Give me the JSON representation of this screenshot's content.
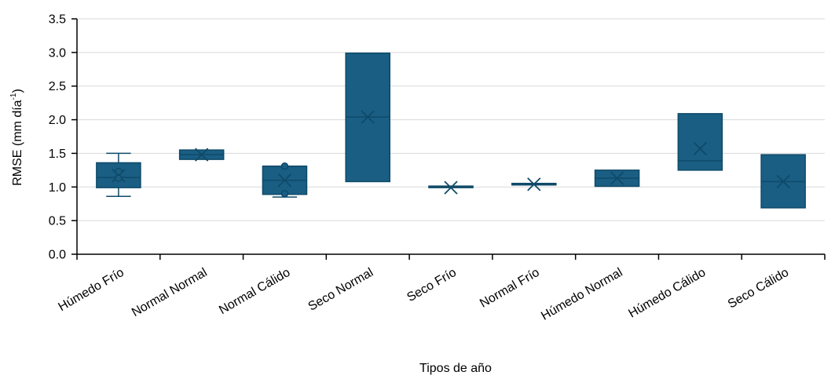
{
  "chart_data": {
    "type": "box",
    "xlabel": "Tipos de año",
    "ylabel": "RMSE (mm día",
    "ylabel_sup": "-1",
    "ylabel_close": ")",
    "ylim": [
      0,
      3.5
    ],
    "yticks": [
      "0.0",
      "0.5",
      "1.0",
      "1.5",
      "2.0",
      "2.5",
      "3.0",
      "3.5"
    ],
    "grid": true,
    "box_color": "#1a5e84",
    "box_edge_color": "#0f4a68",
    "categories": [
      "Húmedo Frío",
      "Normal Normal",
      "Normal Cálido",
      "Seco Normal",
      "Seco Frío",
      "Normal Frío",
      "Húmedo Normal",
      "Húmedo Cálido",
      "Seco Cálido"
    ],
    "boxes": [
      {
        "min": 0.86,
        "q1": 0.99,
        "median": 1.14,
        "q3": 1.36,
        "max": 1.5,
        "mean": 1.17,
        "points": [
          1.23,
          1.13
        ]
      },
      {
        "min": 1.41,
        "q1": 1.41,
        "median": 1.48,
        "q3": 1.55,
        "max": 1.55,
        "mean": 1.48,
        "points": []
      },
      {
        "min": 0.85,
        "q1": 0.89,
        "median": 1.1,
        "q3": 1.31,
        "max": 1.31,
        "mean": 1.1,
        "points": [
          1.31,
          0.9
        ]
      },
      {
        "min": 1.08,
        "q1": 1.08,
        "median": 2.04,
        "q3": 2.99,
        "max": 2.99,
        "mean": 2.04,
        "points": []
      },
      {
        "min": 0.99,
        "q1": 0.99,
        "median": 1.0,
        "q3": 1.0,
        "max": 1.0,
        "mean": 0.99,
        "points": []
      },
      {
        "min": 1.03,
        "q1": 1.03,
        "median": 1.04,
        "q3": 1.04,
        "max": 1.04,
        "mean": 1.04,
        "points": []
      },
      {
        "min": 1.01,
        "q1": 1.01,
        "median": 1.13,
        "q3": 1.25,
        "max": 1.25,
        "mean": 1.13,
        "points": []
      },
      {
        "min": 1.25,
        "q1": 1.25,
        "median": 1.39,
        "q3": 2.09,
        "max": 2.09,
        "mean": 1.57,
        "points": []
      },
      {
        "min": 0.69,
        "q1": 0.69,
        "median": 1.08,
        "q3": 1.48,
        "max": 1.48,
        "mean": 1.08,
        "points": []
      }
    ]
  }
}
